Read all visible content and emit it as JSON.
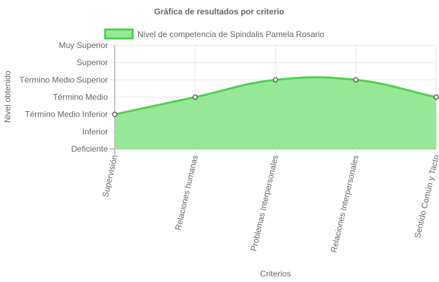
{
  "chart_data": {
    "type": "area",
    "title": "Gráfica de resultados por criterio",
    "xlabel": "Criterios",
    "ylabel": "Nivel obtenido",
    "categories": [
      "Supervisión",
      "Relaciones humanas",
      "Problemas Interpersonales",
      "Relaciones Interpersonales",
      "Sentido Común y Tacto"
    ],
    "y_levels": [
      "Deficiente",
      "Inferior",
      "Término Medio Inferior",
      "Término Medio",
      "Término Medio Superior",
      "Superior",
      "Muy Superior"
    ],
    "series": [
      {
        "name": "Nivel de competencia de Spindalis Pamela Rosario",
        "values": [
          2,
          3,
          4,
          4,
          3
        ]
      }
    ],
    "ylim": [
      0,
      6
    ],
    "grid": true,
    "legend_position": "top",
    "colors": {
      "line": "#4cd14c",
      "fill": "#96e896",
      "grid": "#e6e6e6",
      "axis": "#8c8c8c",
      "text": "#666666"
    }
  }
}
